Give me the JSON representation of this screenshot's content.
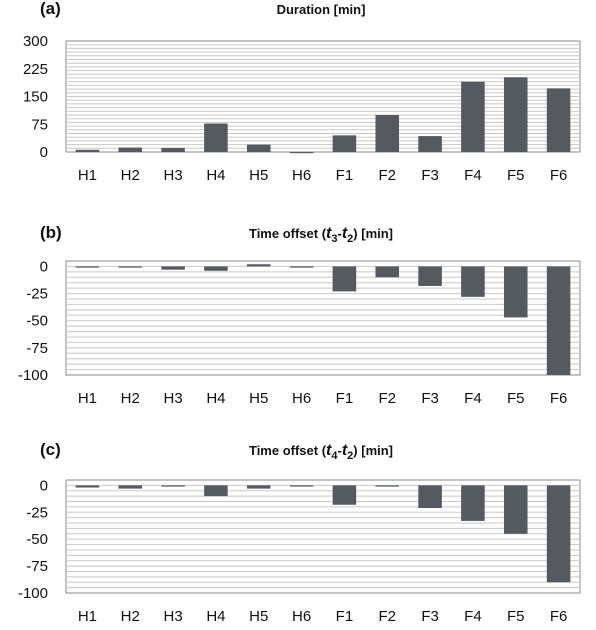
{
  "chart_data": [
    {
      "type": "bar",
      "panel_label": "(a)",
      "title": "Duration [min]",
      "categories": [
        "H1",
        "H2",
        "H3",
        "H4",
        "H5",
        "H6",
        "F1",
        "F2",
        "F3",
        "F4",
        "F5",
        "F6"
      ],
      "values": [
        6,
        12,
        11,
        77,
        20,
        0,
        45,
        100,
        43,
        190,
        202,
        172
      ],
      "ylim": [
        0,
        300
      ],
      "yticks": [
        0,
        75,
        150,
        225,
        300
      ],
      "ytick_labels": [
        "0",
        "75",
        "150",
        "225",
        "300"
      ],
      "grid": true,
      "bar_color": "#555a60"
    },
    {
      "type": "bar",
      "panel_label": "(b)",
      "title_parts": {
        "prefix": "Time offset (",
        "var1": "t",
        "sub1": "3",
        "dash": "-",
        "var2": "t",
        "sub2": "2",
        "suffix": ")   [min]"
      },
      "categories": [
        "H1",
        "H2",
        "H3",
        "H4",
        "H5",
        "H6",
        "F1",
        "F2",
        "F3",
        "F4",
        "F5",
        "F6"
      ],
      "values": [
        -1,
        0,
        -3,
        -4,
        2,
        0,
        -23,
        -10,
        -18,
        -28,
        -47,
        -100
      ],
      "ylim": [
        -100,
        5
      ],
      "yticks": [
        0,
        -25,
        -50,
        -75,
        -100
      ],
      "ytick_labels": [
        "0",
        "-25",
        "-50",
        "-75",
        "-100"
      ],
      "grid": true,
      "bar_color": "#555a60"
    },
    {
      "type": "bar",
      "panel_label": "(c)",
      "title_parts": {
        "prefix": "Time offset (",
        "var1": "t",
        "sub1": "4",
        "dash": "-",
        "var2": "t",
        "sub2": "2",
        "suffix": ")   [min]"
      },
      "categories": [
        "H1",
        "H2",
        "H3",
        "H4",
        "H5",
        "H6",
        "F1",
        "F2",
        "F3",
        "F4",
        "F5",
        "F6"
      ],
      "values": [
        -2,
        -3,
        -1,
        -10,
        -3,
        -1,
        -18,
        0,
        -21,
        -33,
        -45,
        -90
      ],
      "ylim": [
        -100,
        5
      ],
      "yticks": [
        0,
        -25,
        -50,
        -75,
        -100
      ],
      "ytick_labels": [
        "0",
        "-25",
        "-50",
        "-75",
        "-100"
      ],
      "grid": true,
      "bar_color": "#555a60"
    }
  ]
}
